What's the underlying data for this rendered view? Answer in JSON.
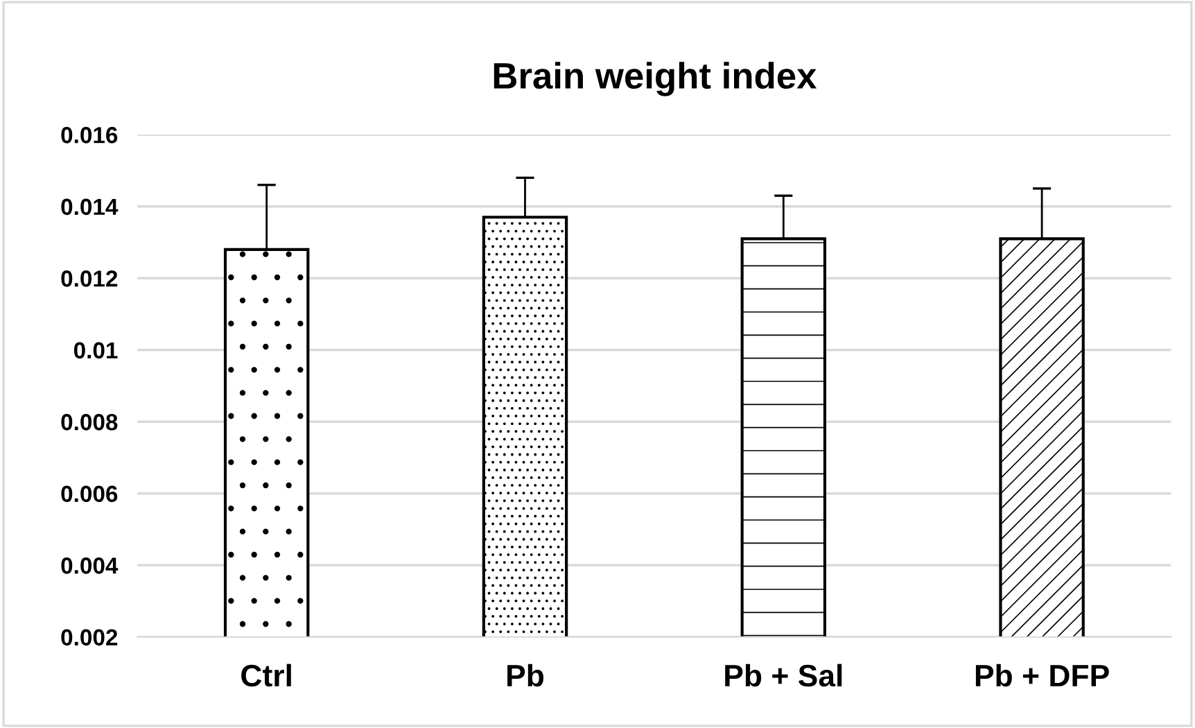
{
  "chart_data": {
    "type": "bar",
    "title": "Brain weight index",
    "categories": [
      "Ctrl",
      "Pb",
      "Pb + Sal",
      "Pb + DFP"
    ],
    "values": [
      0.0128,
      0.0137,
      0.0131,
      0.0131
    ],
    "errors": [
      [
        0.0128,
        0.0146
      ],
      [
        0.0137,
        0.0148
      ],
      [
        0.0131,
        0.0143
      ],
      [
        0.0131,
        0.0145
      ]
    ],
    "colors": [
      "#ffffff",
      "#ffffff",
      "#ffffff",
      "#ffffff"
    ],
    "ylim": [
      0.002,
      0.016
    ],
    "yticks": [
      {
        "value": 0.002,
        "label": "0.002"
      },
      {
        "value": 0.004,
        "label": "0.004"
      },
      {
        "value": 0.006,
        "label": "0.006"
      },
      {
        "value": 0.008,
        "label": "0.008"
      },
      {
        "value": 0.01,
        "label": "0.01"
      },
      {
        "value": 0.012,
        "label": "0.012"
      },
      {
        "value": 0.014,
        "label": "0.014"
      },
      {
        "value": 0.016,
        "label": "0.016"
      }
    ],
    "grid": "y"
  }
}
